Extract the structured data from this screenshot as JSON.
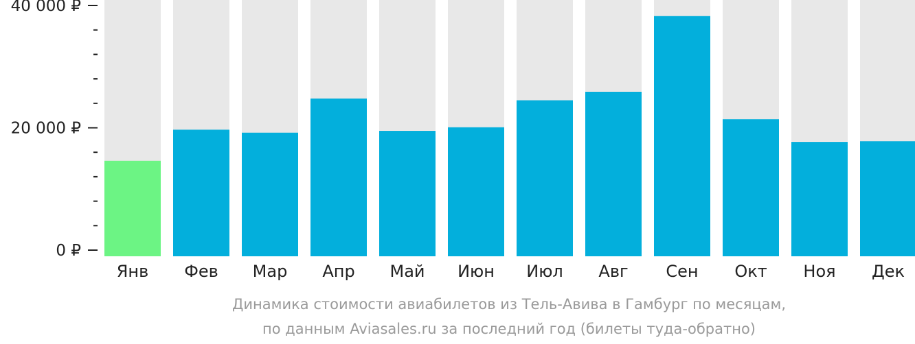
{
  "chart_data": {
    "type": "bar",
    "categories": [
      "Янв",
      "Фев",
      "Мар",
      "Апр",
      "Май",
      "Июн",
      "Июл",
      "Авг",
      "Сен",
      "Окт",
      "Ноя",
      "Дек"
    ],
    "values": [
      15600,
      20700,
      20200,
      25800,
      20500,
      21100,
      25500,
      26900,
      39300,
      22400,
      18700,
      18800
    ],
    "ylim": [
      0,
      41500
    ],
    "y_ticks": [
      0,
      20000,
      40000
    ],
    "y_tick_labels": [
      "0 ₽",
      "20 000 ₽",
      "40 000 ₽"
    ],
    "y_minor_ticks": [
      4000,
      8000,
      12000,
      16000,
      24000,
      28000,
      32000,
      36000
    ],
    "highlight_index": 0,
    "colors": {
      "bar": "#03afdc",
      "highlight_bar": "#6cf484",
      "background_bar": "#e8e8e8",
      "axis": "#222222",
      "caption": "#9a9a9a"
    },
    "caption_lines": [
      "Динамика стоимости авиабилетов из Тель-Авива в Гамбург по месяцам,",
      "по данным Aviasales.ru за последний год (билеты туда-обратно)"
    ]
  }
}
